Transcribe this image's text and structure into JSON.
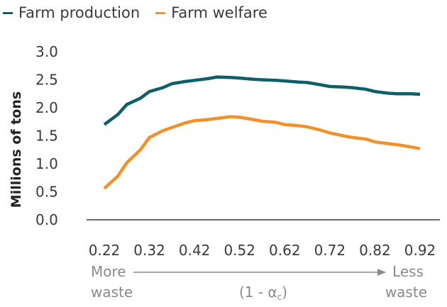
{
  "chart_data": {
    "type": "line",
    "title": "",
    "ylabel": "Millions of tons",
    "xlabel": "(1 - α_c)",
    "x": [
      0.22,
      0.25,
      0.27,
      0.3,
      0.32,
      0.35,
      0.37,
      0.4,
      0.42,
      0.45,
      0.47,
      0.5,
      0.52,
      0.55,
      0.57,
      0.6,
      0.62,
      0.65,
      0.67,
      0.7,
      0.72,
      0.75,
      0.77,
      0.8,
      0.82,
      0.85,
      0.87,
      0.9,
      0.92
    ],
    "xlim": [
      0.22,
      0.92
    ],
    "ylim": [
      0.0,
      3.0
    ],
    "yticks": [
      "3.0",
      "2.5",
      "2.0",
      "1.5",
      "1.0",
      "0.5",
      "0.0"
    ],
    "yticks_values": [
      3.0,
      2.5,
      2.0,
      1.5,
      1.0,
      0.5,
      0.0
    ],
    "xticks": [
      "0.22",
      "0.32",
      "0.42",
      "0.52",
      "0.62",
      "0.72",
      "0.82",
      "0.92"
    ],
    "xticks_values": [
      0.22,
      0.32,
      0.42,
      0.52,
      0.62,
      0.72,
      0.82,
      0.92
    ],
    "series": [
      {
        "name": "Farm production",
        "color": "#0e6068",
        "values": [
          1.7,
          1.88,
          2.06,
          2.17,
          2.29,
          2.36,
          2.43,
          2.47,
          2.49,
          2.52,
          2.55,
          2.54,
          2.53,
          2.51,
          2.5,
          2.49,
          2.48,
          2.46,
          2.45,
          2.41,
          2.38,
          2.37,
          2.36,
          2.33,
          2.29,
          2.26,
          2.25,
          2.25,
          2.24
        ]
      },
      {
        "name": "Farm welfare",
        "color": "#f0922c",
        "values": [
          0.56,
          0.78,
          1.02,
          1.25,
          1.47,
          1.59,
          1.65,
          1.73,
          1.77,
          1.79,
          1.81,
          1.84,
          1.83,
          1.79,
          1.76,
          1.74,
          1.7,
          1.68,
          1.66,
          1.6,
          1.55,
          1.5,
          1.47,
          1.44,
          1.39,
          1.36,
          1.34,
          1.3,
          1.27
        ]
      }
    ],
    "grid": false,
    "legend_position": "top-left",
    "direction_note": {
      "left_line1": "More",
      "left_line2": "waste",
      "right_line1": "Less",
      "right_line2": "waste",
      "center_prefix": "(1 - α",
      "center_sub": "c",
      "center_suffix": ")"
    }
  }
}
